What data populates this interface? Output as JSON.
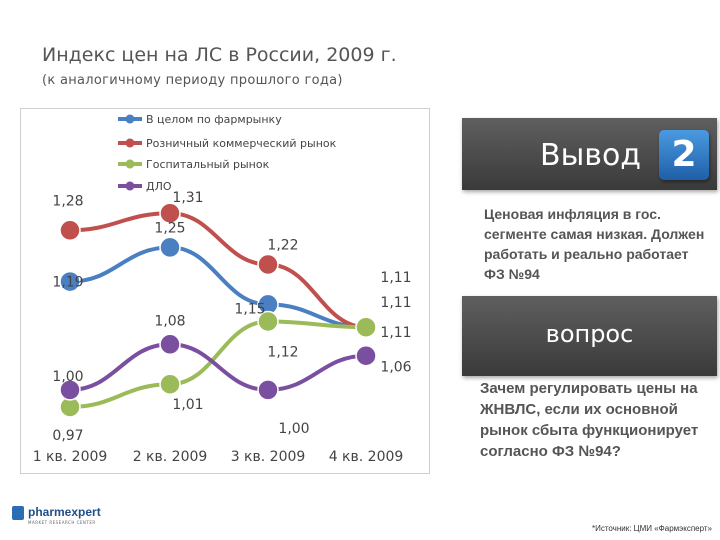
{
  "title": "Индекс цен на ЛС в России, 2009 г.",
  "subtitle": "(к аналогичному периоду прошлого года)",
  "chart_data": {
    "type": "line",
    "categories": [
      "1 кв. 2009",
      "2 кв. 2009",
      "3 кв. 2009",
      "4 кв. 2009"
    ],
    "series": [
      {
        "name": "В целом по фармрынку",
        "color": "#4a7fc1",
        "values": [
          1.19,
          1.25,
          1.15,
          1.11
        ],
        "labels": [
          "1,19",
          "1,25",
          "1,15",
          "1,11"
        ]
      },
      {
        "name": "Розничный коммерческий рынок",
        "color": "#c0504d",
        "values": [
          1.28,
          1.31,
          1.22,
          1.11
        ],
        "labels": [
          "1,28",
          "1,31",
          "1,22",
          "1,11"
        ]
      },
      {
        "name": "Госпитальный рынок",
        "color": "#9bbb59",
        "values": [
          0.97,
          1.01,
          1.12,
          1.11
        ],
        "labels": [
          "0,97",
          "1,01",
          "1,12",
          "1,11"
        ]
      },
      {
        "name": "ДЛО",
        "color": "#7b4fa0",
        "values": [
          1.0,
          1.08,
          1.0,
          1.06
        ],
        "labels": [
          "1,00",
          "1,08",
          "1,00",
          "1,06"
        ]
      }
    ],
    "legend_position": "top-left",
    "grid": false
  },
  "box1": {
    "label": "Вывод",
    "badge": "2"
  },
  "text1": "Ценовая инфляция в гос. сегменте самая низкая. Должен работать и реально работает ФЗ №94",
  "box2": {
    "label": "вопрос"
  },
  "text2": "Зачем регулировать цены на ЖНВЛС, если их основной рынок сбыта функционирует согласно ФЗ №94?",
  "logo": {
    "name": "pharmexpert",
    "tagline": "MARKET RESEARCH CENTER"
  },
  "source": "*Источник: ЦМИ «Фармэксперт»"
}
